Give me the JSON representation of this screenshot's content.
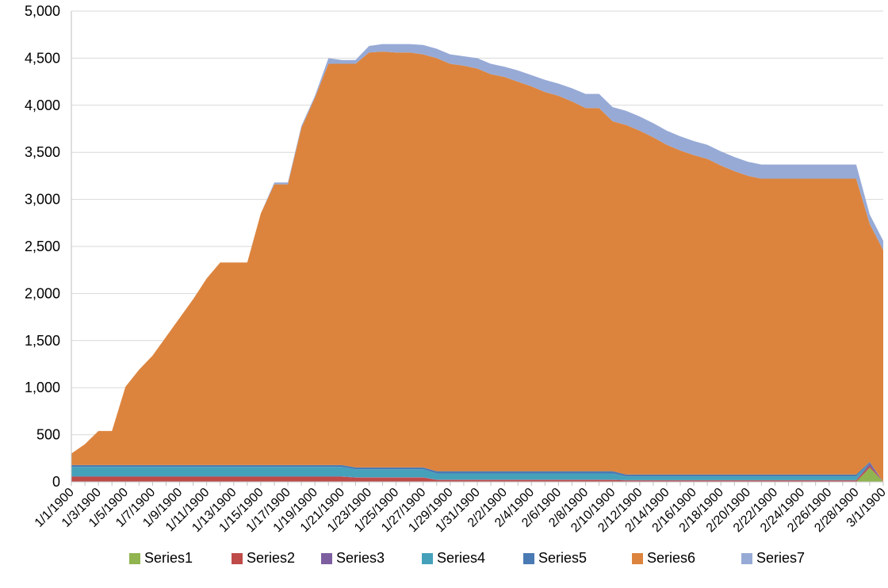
{
  "chart_data": {
    "type": "stacked_area",
    "categories": [
      "1/1/1900",
      null,
      "1/3/1900",
      null,
      "1/5/1900",
      null,
      "1/7/1900",
      null,
      "1/9/1900",
      null,
      "1/11/1900",
      null,
      "1/13/1900",
      null,
      "1/15/1900",
      null,
      "1/17/1900",
      null,
      "1/19/1900",
      null,
      "1/21/1900",
      null,
      "1/23/1900",
      null,
      "1/25/1900",
      null,
      "1/27/1900",
      null,
      "1/29/1900",
      null,
      "1/31/1900",
      null,
      "2/2/1900",
      null,
      "2/4/1900",
      null,
      "2/6/1900",
      null,
      "2/8/1900",
      null,
      "2/10/1900",
      null,
      "2/12/1900",
      null,
      "2/14/1900",
      null,
      "2/16/1900",
      null,
      "2/18/1900",
      null,
      "2/20/1900",
      null,
      "2/22/1900",
      null,
      "2/24/1900",
      null,
      "2/26/1900",
      null,
      "2/28/1900",
      null,
      "3/1/1900"
    ],
    "series": [
      {
        "name": "Series1",
        "color": "#90b44f",
        "values": [
          0,
          0,
          0,
          0,
          0,
          0,
          0,
          0,
          0,
          0,
          0,
          0,
          0,
          0,
          0,
          0,
          0,
          0,
          0,
          0,
          0,
          0,
          0,
          0,
          0,
          0,
          0,
          0,
          0,
          0,
          0,
          0,
          0,
          0,
          0,
          0,
          0,
          0,
          0,
          0,
          0,
          0,
          0,
          0,
          0,
          0,
          0,
          0,
          0,
          0,
          0,
          0,
          0,
          0,
          0,
          0,
          0,
          0,
          0,
          150,
          0
        ]
      },
      {
        "name": "Series2",
        "color": "#be4b48",
        "values": [
          55,
          55,
          55,
          55,
          55,
          55,
          55,
          55,
          55,
          55,
          55,
          55,
          55,
          55,
          55,
          55,
          55,
          55,
          55,
          55,
          55,
          45,
          45,
          45,
          45,
          45,
          45,
          20,
          20,
          20,
          20,
          20,
          20,
          20,
          20,
          20,
          20,
          20,
          20,
          20,
          20,
          15,
          15,
          15,
          15,
          15,
          15,
          15,
          15,
          15,
          15,
          15,
          15,
          15,
          15,
          15,
          15,
          15,
          15,
          20,
          0
        ]
      },
      {
        "name": "Series3",
        "color": "#7d5fa0",
        "values": [
          3,
          3,
          3,
          3,
          3,
          3,
          3,
          3,
          3,
          3,
          3,
          3,
          3,
          3,
          3,
          3,
          3,
          3,
          3,
          3,
          3,
          3,
          3,
          3,
          3,
          3,
          3,
          3,
          3,
          3,
          3,
          3,
          3,
          3,
          3,
          3,
          3,
          3,
          3,
          3,
          3,
          3,
          3,
          3,
          3,
          3,
          3,
          3,
          3,
          3,
          3,
          3,
          3,
          3,
          3,
          3,
          3,
          3,
          3,
          30,
          0
        ]
      },
      {
        "name": "Series4",
        "color": "#45a1ba",
        "values": [
          100,
          100,
          100,
          100,
          100,
          100,
          100,
          100,
          100,
          100,
          100,
          100,
          100,
          100,
          100,
          100,
          100,
          100,
          100,
          100,
          100,
          85,
          85,
          85,
          85,
          85,
          85,
          65,
          65,
          65,
          65,
          65,
          65,
          65,
          65,
          65,
          65,
          65,
          65,
          65,
          65,
          40,
          40,
          40,
          40,
          40,
          40,
          40,
          40,
          40,
          40,
          40,
          40,
          40,
          40,
          40,
          40,
          40,
          40,
          0,
          0
        ]
      },
      {
        "name": "Series5",
        "color": "#4a7ab4",
        "values": [
          20,
          20,
          20,
          20,
          20,
          20,
          20,
          20,
          20,
          20,
          20,
          20,
          20,
          20,
          20,
          20,
          20,
          20,
          20,
          20,
          20,
          20,
          20,
          20,
          20,
          20,
          20,
          25,
          25,
          25,
          25,
          25,
          25,
          25,
          25,
          25,
          25,
          25,
          25,
          25,
          25,
          20,
          20,
          20,
          20,
          20,
          20,
          20,
          20,
          20,
          20,
          20,
          20,
          20,
          20,
          20,
          20,
          20,
          20,
          10,
          0
        ]
      },
      {
        "name": "Series6",
        "color": "#dc843e",
        "values": [
          122,
          222,
          362,
          362,
          832,
          1012,
          1162,
          1362,
          1562,
          1762,
          1982,
          2152,
          2152,
          2152,
          2672,
          2982,
          2982,
          3582,
          3902,
          4262,
          4262,
          4287,
          4407,
          4417,
          4407,
          4407,
          4387,
          4387,
          4327,
          4307,
          4277,
          4217,
          4187,
          4137,
          4087,
          4027,
          3987,
          3927,
          3857,
          3857,
          3717,
          3712,
          3652,
          3582,
          3502,
          3442,
          3392,
          3352,
          3282,
          3222,
          3172,
          3142,
          3142,
          3142,
          3142,
          3142,
          3142,
          3142,
          3142,
          2530,
          2460
        ]
      },
      {
        "name": "Series7",
        "color": "#97aad6",
        "values": [
          0,
          0,
          0,
          0,
          0,
          0,
          0,
          0,
          0,
          0,
          0,
          0,
          0,
          0,
          0,
          20,
          20,
          20,
          20,
          60,
          40,
          40,
          70,
          80,
          90,
          90,
          100,
          100,
          100,
          100,
          110,
          110,
          110,
          120,
          120,
          130,
          130,
          140,
          150,
          150,
          150,
          150,
          150,
          150,
          150,
          150,
          150,
          150,
          150,
          150,
          150,
          150,
          150,
          150,
          150,
          150,
          150,
          150,
          150,
          100,
          100
        ]
      }
    ],
    "ylim": [
      0,
      5000
    ],
    "yticks": [
      0,
      500,
      {
        "value": 1000,
        "label": "1,000"
      },
      {
        "value": 1500,
        "label": "1,500"
      },
      {
        "value": 2000,
        "label": "2,000"
      },
      {
        "value": 2500,
        "label": "2,500"
      },
      {
        "value": 3000,
        "label": "3,000"
      },
      {
        "value": 3500,
        "label": "3,500"
      },
      {
        "value": 4000,
        "label": "4,000"
      },
      {
        "value": 4500,
        "label": "4,500"
      },
      {
        "value": 5000,
        "label": "5,000"
      }
    ],
    "grid": true,
    "legend": "bottom"
  }
}
